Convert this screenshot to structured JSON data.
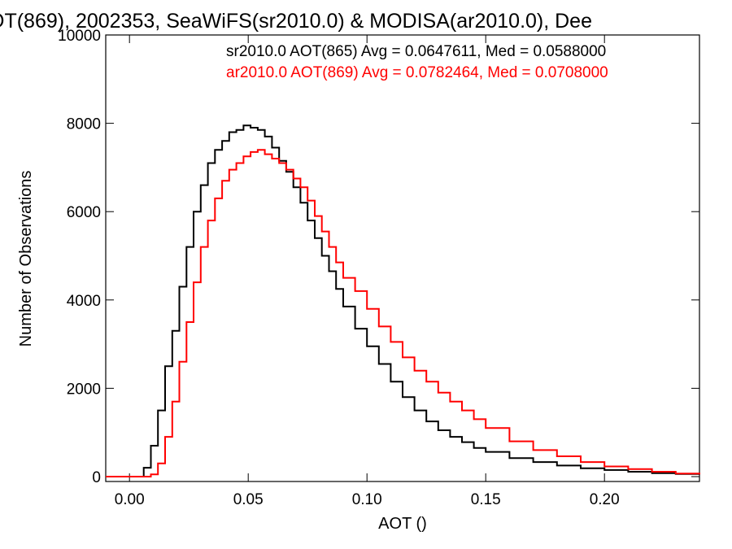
{
  "chart_data": {
    "type": "line",
    "title": "OT(869), 2002353, SeaWiFS(sr2010.0) & MODISA(ar2010.0), Dee",
    "xlabel": "AOT ()",
    "ylabel": "Number of Observations",
    "xlim": [
      -0.01,
      0.24
    ],
    "ylim": [
      0,
      10000
    ],
    "x_ticks": [
      {
        "value": 0.0,
        "label": "0.00"
      },
      {
        "value": 0.05,
        "label": "0.05"
      },
      {
        "value": 0.1,
        "label": "0.10"
      },
      {
        "value": 0.15,
        "label": "0.15"
      },
      {
        "value": 0.2,
        "label": "0.20"
      }
    ],
    "y_ticks": [
      {
        "value": 0,
        "label": "0"
      },
      {
        "value": 2000,
        "label": "2000"
      },
      {
        "value": 4000,
        "label": "4000"
      },
      {
        "value": 6000,
        "label": "6000"
      },
      {
        "value": 8000,
        "label": "8000"
      },
      {
        "value": 10000,
        "label": "10000"
      }
    ],
    "grid": false,
    "legend_position": "top-right",
    "annotations": [
      {
        "text": "sr2010.0 AOT(865) Avg = 0.0647611, Med = 0.0588000",
        "color": "#000000"
      },
      {
        "text": "ar2010.0 AOT(869) Avg = 0.0782464, Med = 0.0708000",
        "color": "#ff0000"
      }
    ],
    "series": [
      {
        "color": "#000000",
        "step": "histogram",
        "x": [
          -0.01,
          0.0,
          0.003,
          0.006,
          0.009,
          0.012,
          0.015,
          0.018,
          0.021,
          0.024,
          0.027,
          0.03,
          0.033,
          0.036,
          0.039,
          0.042,
          0.045,
          0.048,
          0.051,
          0.054,
          0.057,
          0.06,
          0.063,
          0.066,
          0.069,
          0.072,
          0.075,
          0.078,
          0.081,
          0.084,
          0.087,
          0.09,
          0.095,
          0.1,
          0.105,
          0.11,
          0.115,
          0.12,
          0.125,
          0.13,
          0.135,
          0.14,
          0.145,
          0.15,
          0.16,
          0.17,
          0.18,
          0.19,
          0.2,
          0.21,
          0.22,
          0.23,
          0.24
        ],
        "y": [
          0,
          0,
          0,
          200,
          700,
          1500,
          2500,
          3300,
          4300,
          5200,
          6000,
          6600,
          7100,
          7400,
          7600,
          7800,
          7850,
          7950,
          7900,
          7850,
          7700,
          7450,
          7150,
          6900,
          6550,
          6200,
          5800,
          5400,
          5000,
          4650,
          4250,
          3850,
          3350,
          2950,
          2550,
          2150,
          1800,
          1500,
          1250,
          1050,
          900,
          780,
          650,
          560,
          420,
          330,
          250,
          190,
          150,
          110,
          80,
          60,
          50
        ]
      },
      {
        "color": "#ff0000",
        "step": "histogram",
        "x": [
          -0.01,
          0.0,
          0.003,
          0.006,
          0.009,
          0.012,
          0.015,
          0.018,
          0.021,
          0.024,
          0.027,
          0.03,
          0.033,
          0.036,
          0.039,
          0.042,
          0.045,
          0.048,
          0.051,
          0.054,
          0.057,
          0.06,
          0.063,
          0.066,
          0.069,
          0.072,
          0.075,
          0.078,
          0.081,
          0.084,
          0.087,
          0.09,
          0.095,
          0.1,
          0.105,
          0.11,
          0.115,
          0.12,
          0.125,
          0.13,
          0.135,
          0.14,
          0.145,
          0.15,
          0.16,
          0.17,
          0.18,
          0.19,
          0.2,
          0.21,
          0.22,
          0.23,
          0.24
        ],
        "y": [
          0,
          0,
          0,
          0,
          50,
          300,
          900,
          1700,
          2600,
          3500,
          4400,
          5200,
          5800,
          6300,
          6700,
          6950,
          7100,
          7250,
          7350,
          7400,
          7300,
          7200,
          7100,
          6950,
          6750,
          6550,
          6250,
          5900,
          5550,
          5200,
          4850,
          4500,
          4200,
          3800,
          3400,
          3050,
          2700,
          2400,
          2150,
          1900,
          1700,
          1500,
          1300,
          1100,
          800,
          600,
          460,
          330,
          230,
          170,
          110,
          70,
          50
        ]
      }
    ]
  }
}
